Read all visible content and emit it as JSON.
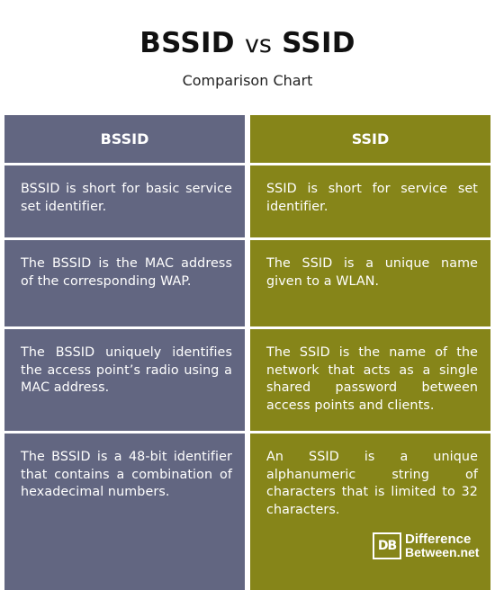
{
  "title": {
    "left": "BSSID",
    "vs": "vs",
    "right": "SSID"
  },
  "subtitle": "Comparison Chart",
  "columns": [
    {
      "header": "BSSID",
      "rows": [
        "BSSID is short for basic service set identifier.",
        "The BSSID is the MAC address of the corresponding WAP.",
        "The BSSID uniquely identifies the access point’s radio using a MAC address.",
        "The BSSID is a 48-bit identifier that contains a combination of hexadecimal numbers."
      ]
    },
    {
      "header": "SSID",
      "rows": [
        "SSID is short for service set identifier.",
        "The SSID is a unique name given to a WLAN.",
        "The SSID is the name of the network that acts as a single shared password between access points and clients.",
        "An SSID is a unique alphanumeric string of characters that is limited to 32 characters."
      ]
    }
  ],
  "logo": {
    "mark": "DB",
    "line1": "Difference",
    "line2": "Between.net"
  },
  "colors": {
    "left_column": "#626681",
    "right_column": "#868519",
    "divider": "#ffffff"
  }
}
